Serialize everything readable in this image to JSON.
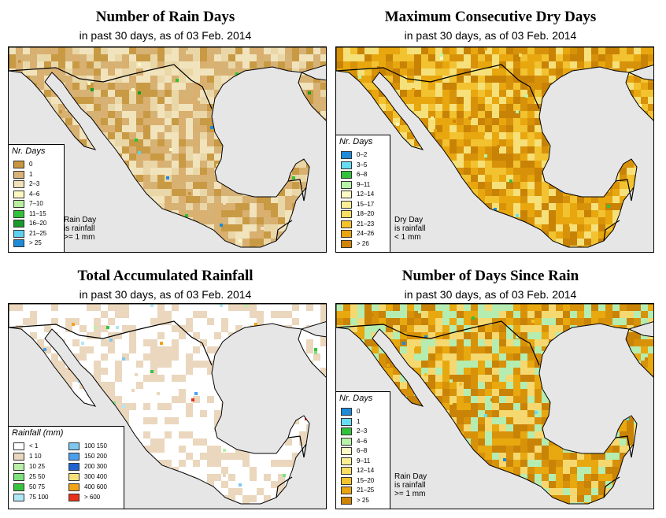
{
  "panels": [
    {
      "id": "rain-days",
      "title": "Number of Rain Days",
      "subtitle": "in past 30 days, as of  03 Feb. 2014",
      "legend_title": "Nr. Days",
      "land_palette": [
        "#c99a44",
        "#d9b070",
        "#ead7a8",
        "#f1e3bc",
        "#d7b275"
      ],
      "legend": [
        {
          "label": "0",
          "color": "#c8963f"
        },
        {
          "label": "1",
          "color": "#d8b276"
        },
        {
          "label": "2–3",
          "color": "#f0e0bb"
        },
        {
          "label": "4–6",
          "color": "#fdf7c2"
        },
        {
          "label": "7–10",
          "color": "#b8f0a0"
        },
        {
          "label": "11–15",
          "color": "#2fc23a"
        },
        {
          "label": "16–20",
          "color": "#1a9a2a"
        },
        {
          "label": "21–25",
          "color": "#5fd0ee"
        },
        {
          "label": "> 25",
          "color": "#1e8ad8"
        }
      ],
      "note": "Rain Day\nis rainfall\n>= 1 mm"
    },
    {
      "id": "dry-days",
      "title": "Maximum Consecutive Dry Days",
      "subtitle": "in past 30 days, as of  03 Feb. 2014",
      "legend_title": "Nr. Days",
      "land_palette": [
        "#d8920a",
        "#e8a70f",
        "#c88306",
        "#f2c230",
        "#f6e07a"
      ],
      "legend": [
        {
          "label": "0–2",
          "color": "#1e8ad8"
        },
        {
          "label": "3–5",
          "color": "#66ddf3"
        },
        {
          "label": "6–8",
          "color": "#2fc23a"
        },
        {
          "label": "9–11",
          "color": "#b8f4a8"
        },
        {
          "label": "12–14",
          "color": "#fdf9c4"
        },
        {
          "label": "15–17",
          "color": "#fbef96"
        },
        {
          "label": "18–20",
          "color": "#f8de62"
        },
        {
          "label": "21–23",
          "color": "#f4c22c"
        },
        {
          "label": "24–26",
          "color": "#eaa410"
        },
        {
          "label": "> 26",
          "color": "#d08407"
        }
      ],
      "note": "Dry Day\nis rainfall\n< 1 mm"
    },
    {
      "id": "total-rainfall",
      "title": "Total Accumulated Rainfall",
      "subtitle": "in past 30 days, as of  03 Feb. 2014",
      "legend_title": "Rainfall (mm)",
      "land_palette": [
        "#ffffff",
        "#ffffff",
        "#ead7bd",
        "#ffffff",
        "#ead7bd"
      ],
      "legend": [
        {
          "label": "< 1",
          "color": "#ffffff"
        },
        {
          "label": "1    10",
          "color": "#ead7bd"
        },
        {
          "label": "10    25",
          "color": "#b9f0a8"
        },
        {
          "label": "25    50",
          "color": "#7ee07e"
        },
        {
          "label": "50    75",
          "color": "#38c23e"
        },
        {
          "label": "75   100",
          "color": "#aee8f4"
        },
        {
          "label": "100   150",
          "color": "#7cc8f2"
        },
        {
          "label": "150   200",
          "color": "#4aa0ee"
        },
        {
          "label": "200   300",
          "color": "#1e63d0"
        },
        {
          "label": "300   400",
          "color": "#f7e27a"
        },
        {
          "label": "400   600",
          "color": "#f2a316"
        },
        {
          "label": "> 600",
          "color": "#e8301a"
        }
      ],
      "note": ""
    },
    {
      "id": "days-since-rain",
      "title": "Number of Days Since Rain",
      "subtitle": "in past 30 days, as of  03 Feb. 2014",
      "legend_title": "Nr. Days",
      "land_palette": [
        "#d8920a",
        "#c98307",
        "#e8a80f",
        "#f5d870",
        "#b5ecb0"
      ],
      "legend": [
        {
          "label": "0",
          "color": "#1e8ad8"
        },
        {
          "label": "1",
          "color": "#66ddf3"
        },
        {
          "label": "2–3",
          "color": "#2fc23a"
        },
        {
          "label": "4–6",
          "color": "#b8f4a8"
        },
        {
          "label": "6–8",
          "color": "#fdf9c4"
        },
        {
          "label": "9–11",
          "color": "#fbef96"
        },
        {
          "label": "12–14",
          "color": "#f8de62"
        },
        {
          "label": "15–20",
          "color": "#f4c22c"
        },
        {
          "label": "21–25",
          "color": "#eaa410"
        },
        {
          "label": "> 25",
          "color": "#d08407"
        }
      ],
      "note": "Rain Day\nis rainfall\n>= 1 mm"
    }
  ],
  "colors": {
    "ocean": "#e6e6e6",
    "border": "#000000"
  }
}
